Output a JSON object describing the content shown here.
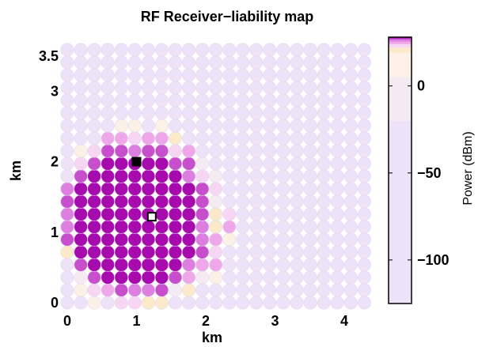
{
  "chart_data": {
    "type": "heatmap",
    "title": "RF Receiver−liability map",
    "xlabel": "km",
    "ylabel": "km",
    "xticks": [
      "0",
      "1",
      "2",
      "3",
      "4"
    ],
    "yticks": [
      "0",
      "1",
      "2",
      "3",
      "3.5"
    ],
    "xlim": [
      0,
      4.4
    ],
    "ylim": [
      0,
      3.75
    ],
    "grid": "hexagonal cells",
    "cell_layout": {
      "columns": 23,
      "rows": 21,
      "spacing_km": 0.195
    },
    "markers": [
      {
        "label": "filled square",
        "x": 1.0,
        "y": 2.0
      },
      {
        "label": "open square",
        "x": 1.22,
        "y": 1.22
      }
    ],
    "regions": [
      {
        "level": "strongest",
        "center": [
          1.0,
          1.2
        ],
        "radius_km": 0.95
      },
      {
        "level": "strong edge",
        "center": [
          1.1,
          1.2
        ],
        "radius_km": 1.25
      },
      {
        "level": "background",
        "value_dbm": -125
      }
    ],
    "colorbar": {
      "label": "Power (dBm)",
      "ticks": [
        "0",
        "−50",
        "−100"
      ],
      "tick_values": [
        0,
        -50,
        -100
      ],
      "range": [
        -125,
        28
      ],
      "colors": [
        "#ede2f8",
        "#f5eaf2",
        "#fbf1e6",
        "#fce9c9",
        "#f7d6f3",
        "#eea8ea",
        "#dd7fe0",
        "#c74fcc",
        "#a70aad"
      ]
    }
  }
}
